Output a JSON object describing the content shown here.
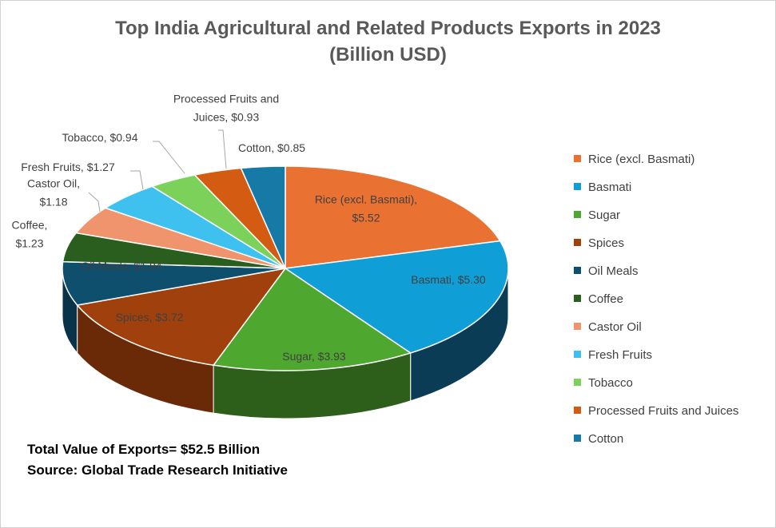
{
  "chart_data": {
    "type": "pie",
    "title_line1": "Top India Agricultural and Related Products Exports in 2023",
    "title_line2": "(Billion USD)",
    "legend_position": "right",
    "slices": [
      {
        "name": "Rice (excl. Basmati)",
        "value": 5.52,
        "label": "Rice (excl. Basmati),\n$5.52",
        "color": "#E97132",
        "side": "#A9521F"
      },
      {
        "name": "Basmati",
        "value": 5.3,
        "label": "Basmati,  $5.30",
        "color": "#0F9ED5",
        "side": "#0A3D55"
      },
      {
        "name": "Sugar",
        "value": 3.93,
        "label": "Sugar,  $3.93",
        "color": "#4EA72E",
        "side": "#2D5E1A"
      },
      {
        "name": "Spices",
        "value": 3.72,
        "label": "Spices,  $3.72",
        "color": "#A0410D",
        "side": "#6A2A08"
      },
      {
        "name": "Oil Meals",
        "value": 1.84,
        "label": "Oil Meals,  $1.84",
        "color": "#0E4F6E",
        "side": "#083348"
      },
      {
        "name": "Coffee",
        "value": 1.23,
        "label": "Coffee,\n$1.23",
        "color": "#2A5E1E",
        "side": "#1B3F13"
      },
      {
        "name": "Castor Oil",
        "value": 1.18,
        "label": "Castor Oil,\n$1.18",
        "color": "#F0946E",
        "side": "#B5694A"
      },
      {
        "name": "Fresh Fruits",
        "value": 1.27,
        "label": "Fresh Fruits,  $1.27",
        "color": "#3FC1F0",
        "side": "#2A8AB0"
      },
      {
        "name": "Tobacco",
        "value": 0.94,
        "label": "Tobacco,  $0.94",
        "color": "#7BD15A",
        "side": "#579A3E"
      },
      {
        "name": "Processed Fruits and Juices",
        "value": 0.93,
        "label": "Processed Fruits and\nJuices,  $0.93",
        "color": "#D35B12",
        "side": "#94400C"
      },
      {
        "name": "Cotton",
        "value": 0.85,
        "label": "Cotton,  $0.85",
        "color": "#1779A6",
        "side": "#0F5475"
      }
    ]
  },
  "footnotes": {
    "total": "Total Value of Exports= $52.5 Billion",
    "source": "Source: Global Trade Research Initiative"
  }
}
